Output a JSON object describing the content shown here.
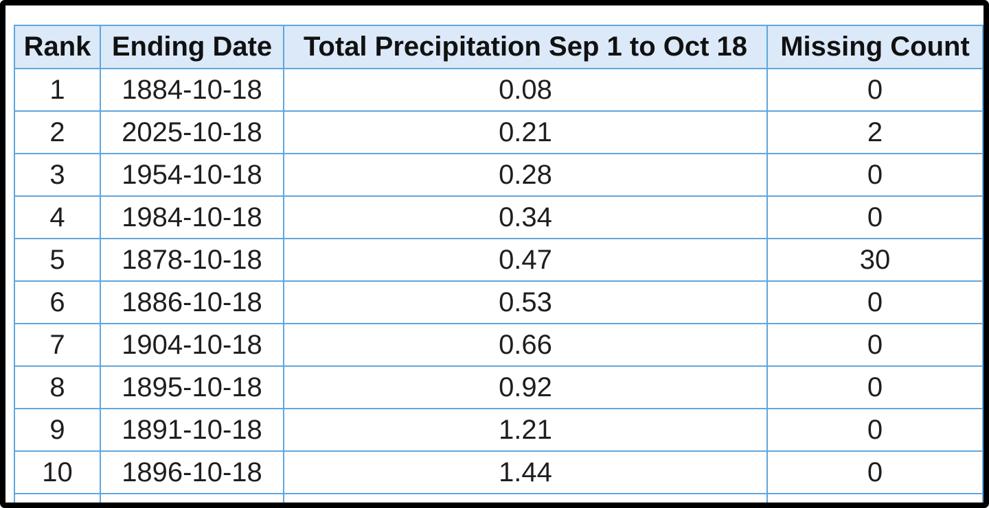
{
  "chart_data": {
    "type": "table",
    "columns": [
      "Rank",
      "Ending Date",
      "Total Precipitation Sep 1 to Oct 18",
      "Missing Count"
    ],
    "rows": [
      [
        "1",
        "1884-10-18",
        "0.08",
        "0"
      ],
      [
        "2",
        "2025-10-18",
        "0.21",
        "2"
      ],
      [
        "3",
        "1954-10-18",
        "0.28",
        "0"
      ],
      [
        "4",
        "1984-10-18",
        "0.34",
        "0"
      ],
      [
        "5",
        "1878-10-18",
        "0.47",
        "30"
      ],
      [
        "6",
        "1886-10-18",
        "0.53",
        "0"
      ],
      [
        "7",
        "1904-10-18",
        "0.66",
        "0"
      ],
      [
        "8",
        "1895-10-18",
        "0.92",
        "0"
      ],
      [
        "9",
        "1891-10-18",
        "1.21",
        "0"
      ],
      [
        "10",
        "1896-10-18",
        "1.44",
        "0"
      ]
    ],
    "notes": "Eleventh row partially visible, cut off at bottom edge of screenshot"
  },
  "colors": {
    "table_border": "#5fa6df",
    "header_background": "#dbe9f8",
    "text": "#1e1e1e",
    "frame": "#000000",
    "page_background": "#ffffff"
  }
}
